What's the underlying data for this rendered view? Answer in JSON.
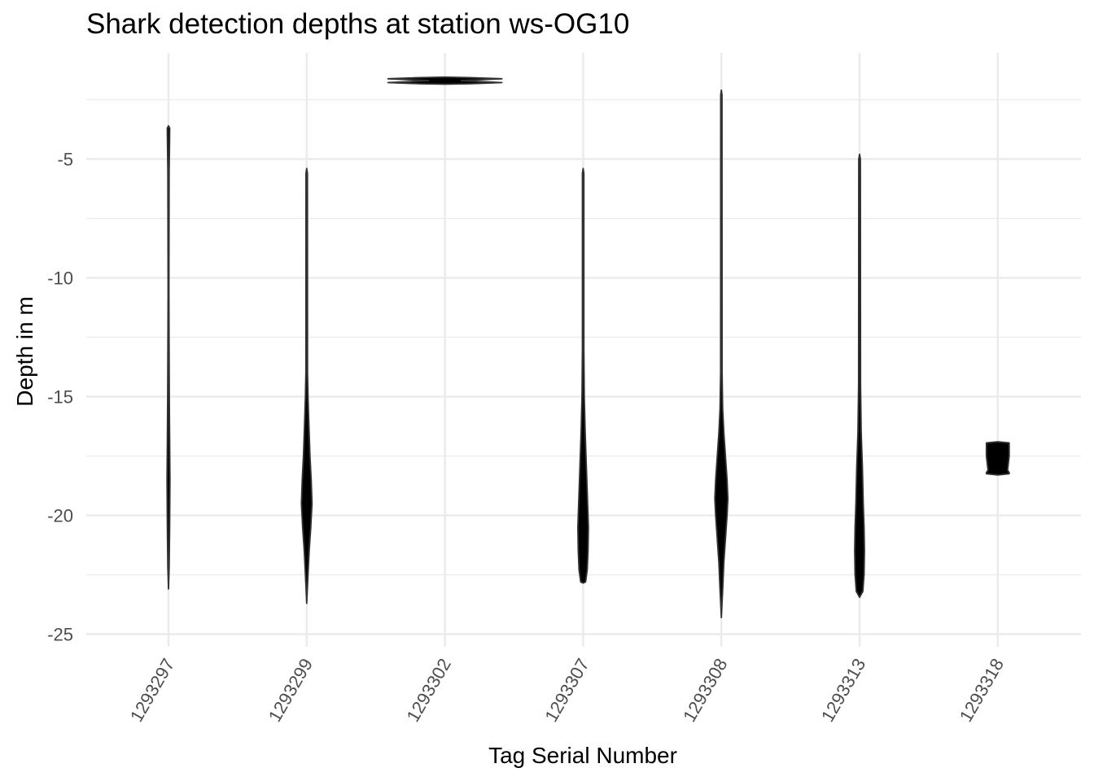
{
  "chart_data": {
    "type": "violin",
    "title": "Shark detection depths at station ws-OG10",
    "xlabel": "Tag Serial Number",
    "ylabel": "Depth in m",
    "ylim": [
      -25.5,
      -1.0
    ],
    "y_ticks": [
      -5,
      -10,
      -15,
      -20,
      -25
    ],
    "y_tick_labels": [
      "-5",
      "-10",
      "-15",
      "-20",
      "-25"
    ],
    "grid": true,
    "legend": "none",
    "categories": [
      "1293297",
      "1293299",
      "1293302",
      "1293307",
      "1293308",
      "1293313",
      "1293318"
    ],
    "fill_color": "#000000",
    "gridline_color": "#ebebeb",
    "violins": [
      {
        "tag": "1293297",
        "profile": [
          [
            -3.6,
            0.0
          ],
          [
            -3.7,
            1.5
          ],
          [
            -4.5,
            1.2
          ],
          [
            -5.5,
            0.8
          ],
          [
            -10.5,
            0.5
          ],
          [
            -12.5,
            0.7
          ],
          [
            -15.0,
            1.0
          ],
          [
            -16.0,
            1.2
          ],
          [
            -18.5,
            1.8
          ],
          [
            -20.5,
            1.4
          ],
          [
            -22.2,
            0.8
          ],
          [
            -23.1,
            0.0
          ]
        ]
      },
      {
        "tag": "1293299",
        "profile": [
          [
            -5.4,
            0.0
          ],
          [
            -5.6,
            0.9
          ],
          [
            -14.0,
            1.0
          ],
          [
            -15.0,
            1.6
          ],
          [
            -16.0,
            2.5
          ],
          [
            -17.5,
            4.0
          ],
          [
            -18.5,
            5.5
          ],
          [
            -19.5,
            6.5
          ],
          [
            -20.5,
            5.0
          ],
          [
            -21.5,
            3.0
          ],
          [
            -22.5,
            1.6
          ],
          [
            -23.7,
            0.0
          ]
        ]
      },
      {
        "tag": "1293302",
        "profile": [
          [
            -1.55,
            0.0
          ],
          [
            -1.57,
            30.0
          ],
          [
            -1.62,
            70.0
          ],
          [
            -1.7,
            20.0
          ],
          [
            -1.78,
            70.0
          ],
          [
            -1.83,
            30.0
          ],
          [
            -1.85,
            0.0
          ]
        ]
      },
      {
        "tag": "1293307",
        "profile": [
          [
            -5.4,
            0.0
          ],
          [
            -5.6,
            0.9
          ],
          [
            -13.0,
            0.9
          ],
          [
            -15.0,
            1.4
          ],
          [
            -16.5,
            2.5
          ],
          [
            -18.0,
            4.0
          ],
          [
            -19.5,
            5.5
          ],
          [
            -20.5,
            6.5
          ],
          [
            -21.5,
            6.0
          ],
          [
            -22.3,
            5.0
          ],
          [
            -22.8,
            3.0
          ],
          [
            -22.85,
            0.0
          ]
        ]
      },
      {
        "tag": "1293308",
        "profile": [
          [
            -2.1,
            0.0
          ],
          [
            -2.3,
            0.8
          ],
          [
            -14.0,
            0.9
          ],
          [
            -15.5,
            1.6
          ],
          [
            -16.5,
            3.0
          ],
          [
            -17.5,
            5.0
          ],
          [
            -18.5,
            7.0
          ],
          [
            -19.3,
            8.0
          ],
          [
            -20.0,
            7.0
          ],
          [
            -21.0,
            5.0
          ],
          [
            -22.0,
            3.0
          ],
          [
            -23.0,
            1.8
          ],
          [
            -24.3,
            0.0
          ]
        ]
      },
      {
        "tag": "1293313",
        "profile": [
          [
            -4.8,
            0.0
          ],
          [
            -5.0,
            1.0
          ],
          [
            -14.5,
            1.2
          ],
          [
            -16.5,
            2.0
          ],
          [
            -18.0,
            3.5
          ],
          [
            -19.5,
            4.5
          ],
          [
            -20.5,
            5.5
          ],
          [
            -21.5,
            6.0
          ],
          [
            -22.5,
            5.5
          ],
          [
            -23.2,
            4.0
          ],
          [
            -23.45,
            0.0
          ]
        ]
      },
      {
        "tag": "1293318",
        "profile": [
          [
            -16.9,
            0.0
          ],
          [
            -16.95,
            14.0
          ],
          [
            -17.5,
            14.0
          ],
          [
            -18.1,
            12.0
          ],
          [
            -18.2,
            14.0
          ],
          [
            -18.25,
            14.0
          ],
          [
            -18.3,
            0.0
          ]
        ]
      }
    ]
  }
}
